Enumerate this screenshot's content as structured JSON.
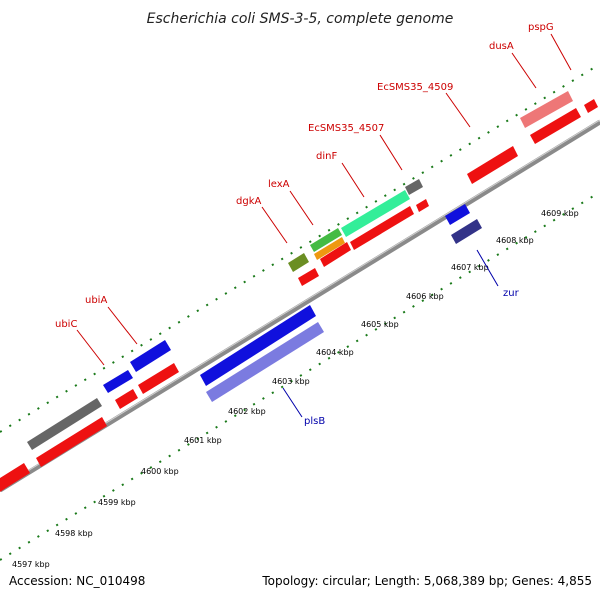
{
  "title": "Escherichia coli SMS-3-5, complete genome",
  "footer": {
    "accession": "Accession: NC_010498",
    "topology": "Topology: circular; Length: 5,068,389 bp; Genes: 4,855"
  },
  "colors": {
    "backbone": "#888888",
    "tick": "#1a7a1a",
    "label_red": "#cc0000",
    "label_blue": "#0000aa"
  },
  "scale_ticks": [
    "4597 kbp",
    "4598 kbp",
    "4599 kbp",
    "4600 kbp",
    "4601 kbp",
    "4602 kbp",
    "4603 kbp",
    "4604 kbp",
    "4605 kbp",
    "4606 kbp",
    "4607 kbp",
    "4608 kbp",
    "4609 kbp"
  ],
  "gene_labels": {
    "ubiC": "ubiC",
    "ubiA": "ubiA",
    "dgkA": "dgkA",
    "lexA": "lexA",
    "dinF": "dinF",
    "EcSMS35_4507": "EcSMS35_4507",
    "EcSMS35_4509": "EcSMS35_4509",
    "dusA": "dusA",
    "pspG": "pspG",
    "plsB": "plsB",
    "zur": "zur"
  }
}
